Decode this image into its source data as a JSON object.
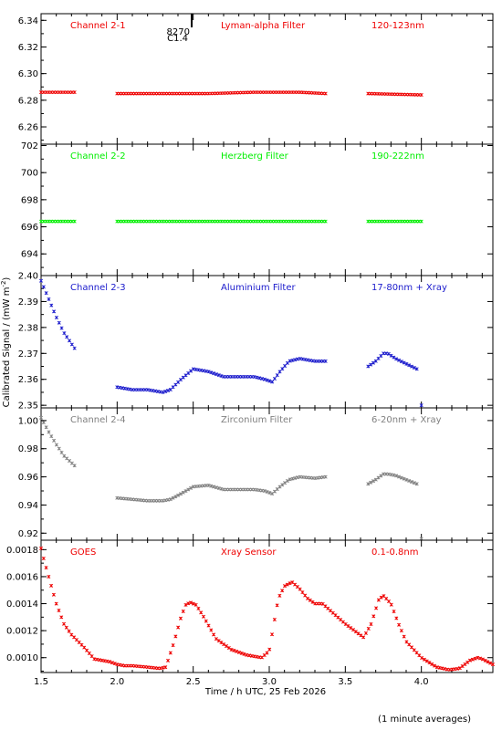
{
  "figure": {
    "ylabel": "Calibrated Signal / (mW m",
    "ylabel_sup": "-2",
    "ylabel_end": ")",
    "xlabel": "Time / h UTC, 25 Feb 2026",
    "footnote": "(1 minute averages)",
    "flare_marker": {
      "x": 2.49,
      "label_top": "8270",
      "label_bottom": "C1.4"
    },
    "xlim": [
      1.5,
      4.47
    ],
    "xticks": [
      1.5,
      2.0,
      2.5,
      3.0,
      3.5,
      4.0
    ],
    "xtick_labels": [
      "1.5",
      "2.0",
      "2.5",
      "3.0",
      "3.5",
      "4.0"
    ]
  },
  "chart_data": [
    {
      "type": "scatter",
      "channel": "Channel 2-1",
      "filter": "Lyman-alpha Filter",
      "band": "120-123nm",
      "color": "#ee0000",
      "ylim": [
        6.247,
        6.345
      ],
      "yticks": [
        6.26,
        6.28,
        6.3,
        6.32,
        6.34
      ],
      "ytick_labels": [
        "6.26",
        "6.28",
        "6.30",
        "6.32",
        "6.34"
      ],
      "segments": [
        {
          "x": [
            1.5,
            1.72
          ],
          "y": [
            6.286,
            6.286
          ]
        },
        {
          "x": [
            2.0,
            2.3,
            2.6,
            2.9,
            3.2,
            3.37
          ],
          "y": [
            6.285,
            6.285,
            6.285,
            6.286,
            6.286,
            6.285
          ]
        },
        {
          "x": [
            3.65,
            4.0
          ],
          "y": [
            6.285,
            6.284
          ]
        }
      ]
    },
    {
      "type": "scatter",
      "channel": "Channel 2-2",
      "filter": "Herzberg Filter",
      "band": "190-222nm",
      "color": "#00ee00",
      "ylim": [
        692.4,
        702.1
      ],
      "yticks": [
        694,
        696,
        698,
        700,
        702
      ],
      "ytick_labels": [
        "694",
        "696",
        "698",
        "700",
        "702"
      ],
      "segments": [
        {
          "x": [
            1.5,
            1.72
          ],
          "y": [
            696.4,
            696.4
          ]
        },
        {
          "x": [
            2.0,
            2.6,
            3.37
          ],
          "y": [
            696.4,
            696.4,
            696.4
          ]
        },
        {
          "x": [
            3.65,
            4.0
          ],
          "y": [
            696.4,
            696.4
          ]
        }
      ]
    },
    {
      "type": "scatter",
      "channel": "Channel 2-3",
      "filter": "Aluminium Filter",
      "band": "17-80nm + Xray",
      "color": "#1a1acc",
      "ylim": [
        2.349,
        2.4
      ],
      "yticks": [
        2.35,
        2.36,
        2.37,
        2.38,
        2.39,
        2.4
      ],
      "ytick_labels": [
        "2.35",
        "2.36",
        "2.37",
        "2.38",
        "2.39",
        "2.40"
      ],
      "segments": [
        {
          "x": [
            1.5,
            1.55,
            1.6,
            1.65,
            1.72
          ],
          "y": [
            2.398,
            2.391,
            2.384,
            2.378,
            2.372
          ]
        },
        {
          "x": [
            2.0,
            2.1,
            2.2,
            2.3,
            2.35,
            2.42,
            2.5,
            2.6,
            2.7,
            2.8,
            2.9,
            2.97,
            3.02,
            3.07,
            3.13,
            3.2,
            3.3,
            3.37
          ],
          "y": [
            2.357,
            2.356,
            2.356,
            2.355,
            2.356,
            2.36,
            2.364,
            2.363,
            2.361,
            2.361,
            2.361,
            2.36,
            2.359,
            2.363,
            2.367,
            2.368,
            2.367,
            2.367
          ]
        },
        {
          "x": [
            3.65,
            3.7,
            3.75,
            3.78,
            3.83,
            3.9,
            3.97
          ],
          "y": [
            2.365,
            2.367,
            2.37,
            2.37,
            2.368,
            2.366,
            2.364
          ]
        }
      ],
      "isolated_points": [
        {
          "x": 4.0,
          "y": 2.35
        }
      ]
    },
    {
      "type": "scatter",
      "channel": "Channel 2-4",
      "filter": "Zirconium Filter",
      "band": "6-20nm + Xray",
      "color": "#808080",
      "ylim": [
        0.915,
        1.009
      ],
      "yticks": [
        0.92,
        0.94,
        0.96,
        0.98,
        1.0
      ],
      "ytick_labels": [
        "0.92",
        "0.94",
        "0.96",
        "0.98",
        "1.00"
      ],
      "segments": [
        {
          "x": [
            1.5,
            1.55,
            1.6,
            1.65,
            1.72
          ],
          "y": [
            1.002,
            0.992,
            0.983,
            0.975,
            0.968
          ]
        },
        {
          "x": [
            2.0,
            2.1,
            2.2,
            2.3,
            2.35,
            2.42,
            2.5,
            2.6,
            2.7,
            2.8,
            2.9,
            2.97,
            3.02,
            3.07,
            3.13,
            3.2,
            3.3,
            3.37
          ],
          "y": [
            0.945,
            0.944,
            0.943,
            0.943,
            0.944,
            0.948,
            0.953,
            0.954,
            0.951,
            0.951,
            0.951,
            0.95,
            0.948,
            0.953,
            0.958,
            0.96,
            0.959,
            0.96
          ]
        },
        {
          "x": [
            3.65,
            3.7,
            3.75,
            3.78,
            3.83,
            3.9,
            3.97
          ],
          "y": [
            0.955,
            0.958,
            0.962,
            0.962,
            0.961,
            0.958,
            0.955
          ]
        }
      ],
      "isolated_points": [
        {
          "x": 4.0,
          "y": 0.916
        }
      ]
    },
    {
      "type": "scatter",
      "channel": "GOES",
      "filter": "Xray Sensor",
      "band": "0.1-0.8nm",
      "color": "#ee0000",
      "ylim": [
        0.00089,
        0.00187
      ],
      "yticks": [
        0.001,
        0.0012,
        0.0014,
        0.0016,
        0.0018
      ],
      "ytick_labels": [
        "0.0010",
        "0.0012",
        "0.0014",
        "0.0016",
        "0.0018"
      ],
      "segments": [
        {
          "x": [
            1.5,
            1.52,
            1.55,
            1.6,
            1.65,
            1.7,
            1.78,
            1.85,
            1.9,
            1.95,
            2.0,
            2.05,
            2.1,
            2.2,
            2.28,
            2.32,
            2.37,
            2.42,
            2.45,
            2.48,
            2.52,
            2.57,
            2.65,
            2.75,
            2.85,
            2.95,
            3.0,
            3.03,
            3.06,
            3.1,
            3.15,
            3.2,
            3.25,
            3.3,
            3.35,
            3.4,
            3.5,
            3.62,
            3.67,
            3.72,
            3.75,
            3.8,
            3.85,
            3.9,
            4.0,
            4.1,
            4.18,
            4.25,
            4.32,
            4.37,
            4.4,
            4.47
          ],
          "y": [
            0.00181,
            0.00172,
            0.0016,
            0.0014,
            0.00125,
            0.00117,
            0.00108,
            0.00099,
            0.00098,
            0.00097,
            0.00095,
            0.00094,
            0.00094,
            0.00093,
            0.00092,
            0.00093,
            0.0011,
            0.0013,
            0.00139,
            0.00141,
            0.00139,
            0.0013,
            0.00114,
            0.00106,
            0.00102,
            0.001,
            0.00105,
            0.00125,
            0.00144,
            0.00153,
            0.00156,
            0.00151,
            0.00144,
            0.0014,
            0.0014,
            0.00135,
            0.00125,
            0.00115,
            0.00125,
            0.00143,
            0.00146,
            0.0014,
            0.00125,
            0.00112,
            0.001,
            0.00093,
            0.00091,
            0.00092,
            0.00098,
            0.001,
            0.00099,
            0.00095
          ]
        }
      ]
    }
  ]
}
